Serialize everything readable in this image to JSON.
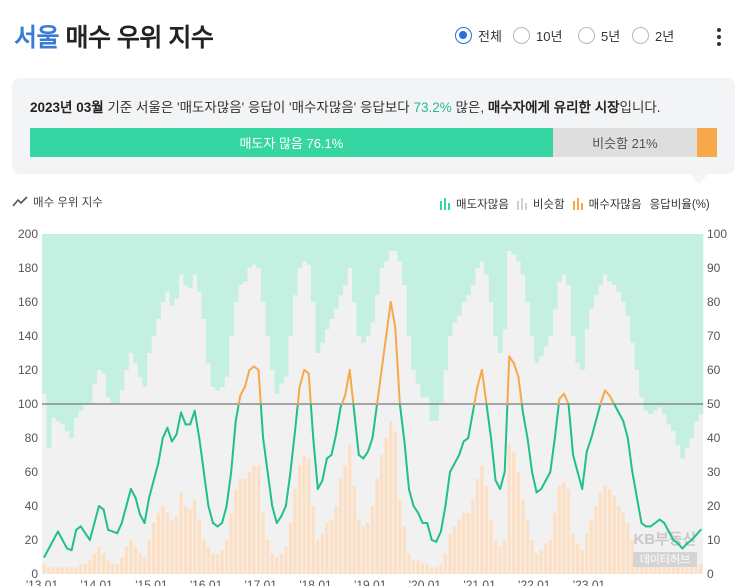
{
  "header": {
    "city": "서울",
    "title_rest": "매수 우위 지수"
  },
  "period_options": [
    {
      "label": "전체",
      "selected": true
    },
    {
      "label": "10년",
      "selected": false
    },
    {
      "label": "5년",
      "selected": false
    },
    {
      "label": "2년",
      "selected": false
    }
  ],
  "summary": {
    "date": "2023년 03월",
    "text1": " 기준 서울은 '매도자많음' 응답이 '매수자많음' 응답보다 ",
    "pct": "73.2%",
    "text2": " 많은, ",
    "conclusion": "매수자에게 유리한 시장",
    "text3": "입니다."
  },
  "ratio_bar": {
    "sell_label": "매도자 많음 76.1%",
    "same_label": "비슷함 21%",
    "sell_pct": 76.1,
    "same_pct": 21,
    "buy_pct": 2.9
  },
  "legend": {
    "line_label": "매수 우위 지수",
    "sell_label": "매도자많음",
    "same_label": "비슷함",
    "buy_label": "매수자많음",
    "axis_right_label": "응답비율(%)"
  },
  "watermark": {
    "line1": "KB부동산",
    "line2": "데이터허브"
  },
  "colors": {
    "sell": "#36d6a2",
    "sell_area": "#c3f0e1",
    "same": "#f1f1f1",
    "buy": "#f7a84a",
    "buy_area": "#fde0c4",
    "line": "#20c08a",
    "accent": "#3a7bd5"
  },
  "chart_data": {
    "type": "line",
    "y_left_ticks": [
      "200",
      "180",
      "160",
      "140",
      "120",
      "100",
      "80",
      "60",
      "40",
      "20",
      "0"
    ],
    "y_right_ticks": [
      "100",
      "90",
      "80",
      "70",
      "60",
      "50",
      "40",
      "30",
      "20",
      "10",
      "0"
    ],
    "x_ticks": [
      "'13.01",
      "'14.01",
      "'15.01",
      "'16.01",
      "'17.01",
      "'18.01",
      "'19.01",
      "'20.01",
      "'21.01",
      "'22.01",
      "'23.01"
    ],
    "ylim_left": [
      0,
      200
    ],
    "ylim_right": [
      0,
      100
    ],
    "reference_line": 100,
    "x_start": "2013-01",
    "series": [
      {
        "name": "매수 우위 지수",
        "values": [
          10,
          15,
          20,
          25,
          20,
          15,
          14,
          26,
          28,
          24,
          20,
          30,
          40,
          38,
          26,
          25,
          24,
          30,
          40,
          50,
          45,
          35,
          30,
          45,
          55,
          65,
          80,
          86,
          78,
          82,
          95,
          88,
          88,
          96,
          80,
          60,
          40,
          30,
          28,
          30,
          40,
          60,
          90,
          105,
          110,
          120,
          122,
          120,
          80,
          60,
          40,
          30,
          34,
          40,
          60,
          84,
          110,
          120,
          118,
          80,
          50,
          55,
          68,
          70,
          82,
          98,
          105,
          120,
          95,
          70,
          68,
          72,
          80,
          100,
          120,
          140,
          160,
          145,
          100,
          78,
          50,
          40,
          36,
          30,
          30,
          20,
          19,
          25,
          40,
          60,
          65,
          70,
          78,
          80,
          95,
          110,
          120,
          100,
          80,
          55,
          50,
          60,
          128,
          124,
          116,
          95,
          80,
          60,
          48,
          50,
          55,
          60,
          80,
          103,
          106,
          100,
          70,
          60,
          50,
          72,
          80,
          90,
          100,
          108,
          105,
          100,
          95,
          90,
          80,
          60,
          45,
          30,
          28,
          28,
          30,
          32,
          30,
          25,
          20,
          18,
          15,
          18,
          20,
          23,
          26
        ]
      }
    ],
    "response_ratio": {
      "sell": [
        47,
        63,
        54,
        55,
        56,
        58,
        60,
        54,
        52,
        50,
        50,
        44,
        40,
        41,
        48,
        50,
        50,
        46,
        40,
        35,
        38,
        42,
        45,
        35,
        30,
        25,
        20,
        17,
        21,
        19,
        12,
        15,
        16,
        12,
        17,
        25,
        38,
        45,
        46,
        45,
        42,
        30,
        20,
        15,
        14,
        10,
        9,
        10,
        20,
        30,
        40,
        47,
        44,
        42,
        30,
        18,
        10,
        8,
        9,
        20,
        35,
        32,
        28,
        25,
        22,
        18,
        15,
        10,
        20,
        30,
        32,
        30,
        26,
        18,
        10,
        8,
        5,
        5,
        8,
        15,
        30,
        40,
        44,
        48,
        48,
        55,
        55,
        50,
        40,
        30,
        26,
        24,
        20,
        18,
        15,
        10,
        8,
        12,
        20,
        30,
        35,
        28,
        5,
        6,
        8,
        12,
        20,
        30,
        38,
        36,
        33,
        30,
        22,
        14,
        12,
        15,
        30,
        38,
        40,
        28,
        22,
        18,
        15,
        12,
        14,
        15,
        17,
        20,
        24,
        32,
        40,
        48,
        52,
        53,
        52,
        51,
        53,
        56,
        58,
        62,
        66,
        63,
        60,
        55,
        53
      ],
      "buy": [
        3,
        2,
        2,
        2,
        2,
        2,
        2,
        2,
        3,
        3,
        4,
        6,
        8,
        6,
        4,
        3,
        3,
        5,
        8,
        10,
        8,
        6,
        5,
        10,
        15,
        18,
        20,
        18,
        16,
        17,
        24,
        20,
        19,
        22,
        16,
        10,
        8,
        6,
        6,
        7,
        10,
        18,
        25,
        28,
        28,
        30,
        32,
        32,
        18,
        10,
        6,
        5,
        6,
        8,
        15,
        25,
        32,
        35,
        34,
        20,
        10,
        12,
        15,
        16,
        20,
        28,
        32,
        38,
        26,
        16,
        14,
        15,
        20,
        28,
        35,
        40,
        45,
        42,
        22,
        14,
        6,
        4,
        4,
        3,
        3,
        2,
        2,
        3,
        6,
        12,
        14,
        16,
        18,
        18,
        22,
        28,
        32,
        26,
        16,
        10,
        8,
        10,
        38,
        36,
        30,
        22,
        16,
        10,
        6,
        7,
        9,
        10,
        18,
        26,
        27,
        25,
        12,
        9,
        7,
        12,
        16,
        20,
        24,
        26,
        25,
        23,
        20,
        18,
        15,
        10,
        6,
        4,
        4,
        3,
        3,
        4,
        4,
        3,
        2,
        2,
        2,
        2,
        3,
        3,
        3
      ]
    }
  }
}
